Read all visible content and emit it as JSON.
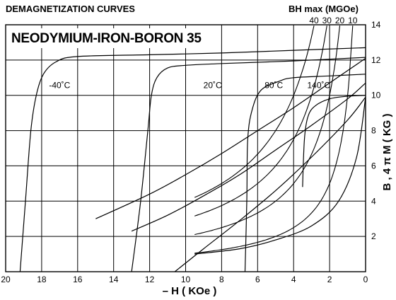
{
  "chart_data": {
    "type": "line",
    "header": "DEMAGNETIZATION CURVES",
    "title": "NEODYMIUM-IRON-BORON 35",
    "xlabel": "– H ( KOe )",
    "ylabel": "B , 4 π M ( KG )",
    "xlim": [
      20,
      0
    ],
    "ylim": [
      0,
      14
    ],
    "x_ticks": [
      20,
      18,
      16,
      14,
      12,
      10,
      8,
      6,
      4,
      2,
      0
    ],
    "y_ticks": [
      2,
      4,
      6,
      8,
      10,
      12,
      14
    ],
    "grid": true,
    "bhmax": {
      "label": "BH max (MGOe)",
      "values": [
        40,
        30,
        20,
        10
      ]
    },
    "series": [
      {
        "name": "-40˚C",
        "intrinsic": [
          [
            19.2,
            0
          ],
          [
            18.9,
            4
          ],
          [
            18.6,
            8
          ],
          [
            18.3,
            10
          ],
          [
            17.9,
            11.2
          ],
          [
            17.2,
            11.9
          ],
          [
            16,
            12.2
          ],
          [
            12,
            12.3
          ],
          [
            8,
            12.4
          ],
          [
            4,
            12.55
          ],
          [
            0,
            12.7
          ]
        ],
        "normal": [
          [
            15,
            3
          ],
          [
            12,
            4.4
          ],
          [
            10,
            5.5
          ],
          [
            8,
            6.7
          ],
          [
            6,
            8
          ],
          [
            4,
            9.3
          ],
          [
            2,
            10.7
          ],
          [
            0,
            12.1
          ]
        ]
      },
      {
        "name": "20˚C",
        "intrinsic": [
          [
            13,
            0
          ],
          [
            12.5,
            4
          ],
          [
            12.1,
            8
          ],
          [
            11.9,
            10
          ],
          [
            11.6,
            11
          ],
          [
            11,
            11.55
          ],
          [
            10,
            11.7
          ],
          [
            8,
            11.8
          ],
          [
            4,
            11.95
          ],
          [
            0,
            12.15
          ]
        ],
        "normal": [
          [
            13,
            2.3
          ],
          [
            11,
            3.2
          ],
          [
            9,
            4.3
          ],
          [
            7,
            5.5
          ],
          [
            5,
            6.9
          ],
          [
            3,
            8.3
          ],
          [
            1,
            9.8
          ],
          [
            0,
            10.7
          ]
        ]
      },
      {
        "name": "80˚C",
        "intrinsic": [
          [
            6.7,
            0
          ],
          [
            6.6,
            4
          ],
          [
            6.55,
            7.5
          ],
          [
            6.3,
            9.2
          ],
          [
            5.8,
            10.3
          ],
          [
            4.8,
            10.8
          ],
          [
            4,
            11
          ],
          [
            2,
            11.1
          ],
          [
            0,
            11.2
          ]
        ],
        "normal": [
          [
            10.6,
            0
          ],
          [
            9,
            1.3
          ],
          [
            7,
            2.9
          ],
          [
            5,
            4.6
          ],
          [
            3,
            6.5
          ],
          [
            1,
            8.6
          ],
          [
            0,
            9.9
          ]
        ]
      },
      {
        "name": "140˚C",
        "intrinsic": [
          [
            3.5,
            4.8
          ],
          [
            3.4,
            7.5
          ],
          [
            3.2,
            8.8
          ],
          [
            2.8,
            9.4
          ],
          [
            2,
            9.8
          ],
          [
            1,
            9.95
          ],
          [
            0,
            10
          ]
        ],
        "normal": [
          [
            9.5,
            1
          ],
          [
            7,
            1.3
          ],
          [
            5,
            1.8
          ],
          [
            3,
            2.6
          ],
          [
            1.5,
            4
          ],
          [
            0.5,
            6.5
          ],
          [
            0,
            9.9
          ]
        ]
      }
    ]
  }
}
